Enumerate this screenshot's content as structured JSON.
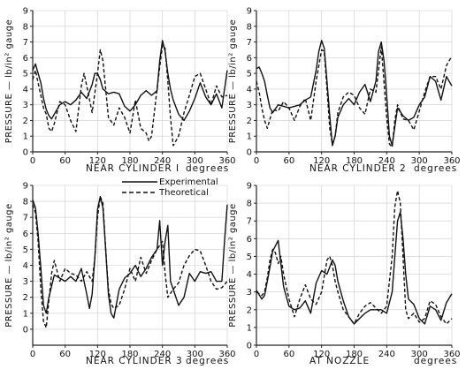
{
  "legend": {
    "experimental": "Experimental",
    "theoretical": "Theoretical"
  },
  "chart_data": [
    {
      "type": "line",
      "panel": "top-left",
      "xlabel": "NEAR CYLINDER I",
      "xunit": "degrees",
      "ylabel": "PRESSURE — lb/in² gauge",
      "xlim": [
        0,
        360
      ],
      "ylim": [
        0,
        9
      ],
      "xticks": [
        0,
        60,
        120,
        180,
        240,
        300,
        360
      ],
      "yticks": [
        0,
        1,
        2,
        3,
        4,
        5,
        6,
        7,
        8,
        9
      ],
      "series": [
        {
          "name": "Experimental",
          "style": "solid",
          "x": [
            0,
            5,
            10,
            15,
            20,
            25,
            30,
            35,
            40,
            50,
            60,
            70,
            80,
            90,
            100,
            110,
            115,
            120,
            125,
            130,
            140,
            150,
            160,
            170,
            180,
            190,
            200,
            210,
            220,
            230,
            235,
            240,
            245,
            250,
            255,
            260,
            270,
            280,
            290,
            300,
            310,
            320,
            330,
            340,
            350,
            360
          ],
          "y": [
            5.2,
            5.6,
            5.0,
            4.4,
            3.4,
            2.7,
            2.3,
            2.1,
            2.4,
            3.0,
            3.2,
            3.0,
            3.3,
            3.8,
            3.4,
            4.3,
            5.0,
            5.0,
            4.6,
            4.0,
            3.7,
            3.8,
            3.7,
            2.9,
            2.6,
            3.0,
            3.6,
            3.9,
            3.6,
            3.9,
            5.8,
            7.1,
            6.4,
            5.0,
            4.0,
            3.3,
            2.4,
            2.0,
            2.6,
            3.4,
            4.4,
            3.5,
            3.0,
            3.7,
            2.8,
            5.2
          ]
        },
        {
          "name": "Theoretical",
          "style": "dashed",
          "x": [
            0,
            5,
            10,
            15,
            20,
            25,
            30,
            35,
            40,
            50,
            60,
            70,
            80,
            90,
            95,
            100,
            110,
            120,
            125,
            130,
            140,
            150,
            160,
            170,
            180,
            190,
            200,
            210,
            215,
            220,
            230,
            240,
            245,
            250,
            255,
            260,
            270,
            280,
            290,
            300,
            310,
            320,
            330,
            340,
            350,
            360
          ],
          "y": [
            4.6,
            5.2,
            4.4,
            3.6,
            2.8,
            2.4,
            1.5,
            1.3,
            1.8,
            3.2,
            3.0,
            2.0,
            1.3,
            4.2,
            5.0,
            4.2,
            2.5,
            5.0,
            6.5,
            5.8,
            2.2,
            1.7,
            2.8,
            2.2,
            1.2,
            3.3,
            1.5,
            1.2,
            0.7,
            1.0,
            4.0,
            6.8,
            6.6,
            4.5,
            2.2,
            0.4,
            1.0,
            2.5,
            3.6,
            4.8,
            5.0,
            4.0,
            3.0,
            4.2,
            3.5,
            3.6
          ]
        }
      ]
    },
    {
      "type": "line",
      "panel": "top-right",
      "xlabel": "NEAR CYLINDER 2",
      "xunit": "degrees",
      "ylabel": "PRESSURE — lb/in² gauge",
      "xlim": [
        0,
        360
      ],
      "ylim": [
        0,
        9
      ],
      "xticks": [
        0,
        60,
        120,
        180,
        240,
        300,
        360
      ],
      "yticks": [
        0,
        1,
        2,
        3,
        4,
        5,
        6,
        7,
        8,
        9
      ],
      "series": [
        {
          "name": "Experimental",
          "style": "solid",
          "x": [
            0,
            5,
            10,
            15,
            20,
            25,
            30,
            40,
            50,
            60,
            70,
            80,
            90,
            100,
            110,
            115,
            120,
            125,
            130,
            135,
            140,
            145,
            150,
            160,
            170,
            180,
            190,
            200,
            210,
            220,
            225,
            230,
            235,
            240,
            245,
            250,
            255,
            260,
            270,
            280,
            290,
            300,
            310,
            320,
            330,
            340,
            350,
            360
          ],
          "y": [
            5.3,
            5.4,
            5.0,
            4.5,
            3.6,
            2.8,
            2.5,
            3.0,
            2.9,
            2.8,
            2.9,
            3.0,
            3.3,
            3.5,
            5.2,
            6.4,
            7.1,
            6.6,
            4.5,
            2.3,
            0.4,
            1.0,
            2.2,
            3.0,
            3.4,
            3.0,
            3.8,
            4.3,
            3.2,
            4.5,
            6.4,
            7.0,
            5.8,
            3.6,
            1.0,
            0.4,
            1.6,
            2.8,
            2.3,
            2.0,
            2.2,
            3.0,
            3.5,
            4.8,
            4.5,
            3.3,
            4.8,
            4.2
          ]
        },
        {
          "name": "Theoretical",
          "style": "dashed",
          "x": [
            0,
            5,
            10,
            15,
            20,
            30,
            40,
            50,
            60,
            70,
            80,
            90,
            100,
            110,
            120,
            125,
            130,
            135,
            140,
            145,
            150,
            160,
            170,
            180,
            190,
            200,
            210,
            220,
            225,
            230,
            240,
            245,
            250,
            255,
            260,
            270,
            280,
            290,
            300,
            310,
            320,
            330,
            340,
            350,
            360
          ],
          "y": [
            4.5,
            3.8,
            2.8,
            2.0,
            1.5,
            2.7,
            2.6,
            3.2,
            2.8,
            2.0,
            2.9,
            3.4,
            2.0,
            4.5,
            6.5,
            6.4,
            4.0,
            1.5,
            0.5,
            1.0,
            2.5,
            3.5,
            3.8,
            3.6,
            2.8,
            2.4,
            4.0,
            3.8,
            5.2,
            6.7,
            2.2,
            0.5,
            0.3,
            2.0,
            3.0,
            2.1,
            2.0,
            1.4,
            2.6,
            3.8,
            4.8,
            4.8,
            4.0,
            5.5,
            6.1
          ]
        }
      ]
    },
    {
      "type": "line",
      "panel": "bottom-left",
      "xlabel": "NEAR CYLINDER 3",
      "xunit": "degrees",
      "ylabel": "PRESSURE — lb/in² gauge",
      "xlim": [
        0,
        360
      ],
      "ylim": [
        -1,
        9
      ],
      "xticks": [
        0,
        60,
        120,
        180,
        240,
        300,
        360
      ],
      "yticks": [
        0,
        1,
        2,
        3,
        4,
        5,
        6,
        7,
        8,
        9
      ],
      "series": [
        {
          "name": "Experimental",
          "style": "solid",
          "x": [
            0,
            5,
            10,
            15,
            20,
            25,
            30,
            40,
            50,
            60,
            70,
            80,
            90,
            100,
            105,
            110,
            115,
            120,
            125,
            130,
            135,
            140,
            145,
            150,
            160,
            170,
            180,
            190,
            200,
            210,
            220,
            230,
            235,
            240,
            245,
            250,
            255,
            260,
            270,
            280,
            290,
            300,
            310,
            320,
            330,
            340,
            350,
            355,
            360
          ],
          "y": [
            8.1,
            7.6,
            6.0,
            3.8,
            1.5,
            1.0,
            2.0,
            3.4,
            3.2,
            3.0,
            3.3,
            3.0,
            3.8,
            2.2,
            1.3,
            2.2,
            4.5,
            7.5,
            8.3,
            7.6,
            5.0,
            2.2,
            1.0,
            0.7,
            2.5,
            3.2,
            3.5,
            4.0,
            3.3,
            3.8,
            4.5,
            5.0,
            6.8,
            4.0,
            5.5,
            6.5,
            3.0,
            2.5,
            1.5,
            2.0,
            3.5,
            3.0,
            3.6,
            3.5,
            3.6,
            3.0,
            3.0,
            5.5,
            7.8
          ]
        },
        {
          "name": "Theoretical",
          "style": "dashed",
          "x": [
            0,
            5,
            10,
            15,
            20,
            25,
            30,
            35,
            40,
            50,
            60,
            70,
            80,
            90,
            100,
            110,
            115,
            120,
            125,
            130,
            135,
            140,
            145,
            150,
            160,
            170,
            180,
            190,
            200,
            210,
            220,
            230,
            240,
            245,
            250,
            260,
            270,
            280,
            290,
            300,
            310,
            320,
            330,
            340,
            350,
            360
          ],
          "y": [
            7.8,
            7.3,
            5.5,
            2.5,
            0.5,
            0.1,
            1.8,
            3.5,
            4.3,
            3.0,
            3.8,
            3.5,
            3.4,
            3.0,
            3.6,
            3.0,
            4.5,
            7.0,
            8.3,
            7.9,
            5.0,
            2.5,
            1.6,
            1.3,
            1.5,
            2.5,
            3.8,
            3.0,
            4.5,
            3.5,
            4.3,
            5.0,
            5.5,
            3.5,
            2.0,
            2.5,
            2.9,
            4.0,
            4.6,
            5.0,
            4.9,
            4.0,
            3.0,
            2.5,
            2.6,
            3.0
          ]
        }
      ]
    },
    {
      "type": "line",
      "panel": "bottom-right",
      "xlabel": "AT NOZZLE",
      "xunit": "degrees",
      "ylabel": "PRESSURE — lb/in² gauge",
      "xlim": [
        0,
        360
      ],
      "ylim": [
        0,
        9
      ],
      "xticks": [
        0,
        60,
        120,
        180,
        240,
        300,
        360
      ],
      "yticks": [
        0,
        1,
        2,
        3,
        4,
        5,
        6,
        7,
        8,
        9
      ],
      "series": [
        {
          "name": "Experimental",
          "style": "solid",
          "x": [
            0,
            10,
            15,
            20,
            25,
            30,
            35,
            40,
            45,
            50,
            60,
            70,
            80,
            90,
            100,
            110,
            120,
            130,
            140,
            145,
            150,
            160,
            170,
            180,
            190,
            200,
            210,
            220,
            230,
            240,
            250,
            255,
            260,
            265,
            270,
            275,
            280,
            290,
            300,
            310,
            320,
            330,
            340,
            350,
            360
          ],
          "y": [
            3.1,
            2.6,
            2.8,
            3.6,
            4.4,
            5.3,
            5.6,
            5.9,
            4.6,
            3.3,
            2.2,
            2.0,
            2.1,
            2.5,
            1.8,
            3.5,
            4.2,
            4.0,
            4.8,
            4.5,
            3.6,
            2.5,
            1.6,
            1.2,
            1.5,
            1.8,
            2.0,
            2.0,
            2.0,
            1.8,
            3.0,
            5.0,
            7.0,
            7.5,
            6.0,
            4.0,
            2.6,
            2.3,
            1.5,
            1.2,
            2.2,
            2.0,
            1.4,
            2.4,
            2.9
          ]
        },
        {
          "name": "Theoretical",
          "style": "dashed",
          "x": [
            0,
            10,
            15,
            20,
            25,
            30,
            35,
            40,
            45,
            50,
            60,
            70,
            80,
            90,
            100,
            110,
            120,
            130,
            135,
            140,
            145,
            150,
            160,
            170,
            180,
            190,
            200,
            210,
            220,
            230,
            240,
            250,
            255,
            260,
            265,
            270,
            275,
            280,
            290,
            300,
            310,
            320,
            330,
            340,
            350,
            360
          ],
          "y": [
            3.0,
            2.8,
            3.0,
            3.8,
            4.8,
            5.4,
            5.2,
            4.6,
            5.0,
            4.0,
            2.6,
            1.6,
            2.6,
            3.4,
            2.6,
            2.3,
            3.0,
            4.8,
            5.0,
            4.5,
            3.6,
            3.0,
            2.0,
            1.6,
            1.2,
            1.8,
            2.2,
            2.4,
            2.1,
            1.8,
            2.2,
            5.0,
            7.8,
            8.7,
            8.0,
            5.0,
            2.0,
            1.5,
            1.8,
            1.3,
            1.5,
            2.5,
            2.3,
            1.6,
            1.2,
            1.5
          ]
        }
      ]
    }
  ]
}
